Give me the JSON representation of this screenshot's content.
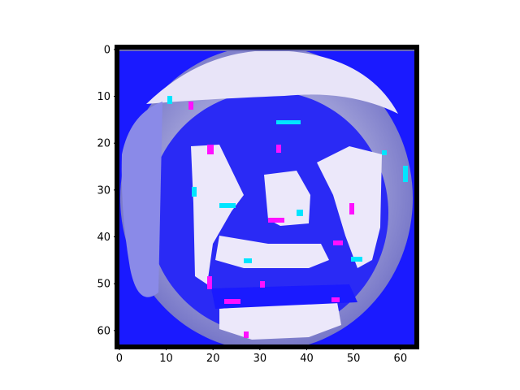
{
  "chart_data": {
    "type": "heatmap",
    "title": "",
    "xlabel": "",
    "ylabel": "",
    "xlim": [
      -0.5,
      63.5
    ],
    "ylim": [
      63.5,
      -0.5
    ],
    "grid": false,
    "x_ticks": [
      0,
      10,
      20,
      30,
      40,
      50,
      60
    ],
    "y_ticks": [
      0,
      10,
      20,
      30,
      40,
      50,
      60
    ],
    "x_tick_labels": [
      "0",
      "10",
      "20",
      "30",
      "40",
      "50",
      "60"
    ],
    "y_tick_labels": [
      "0",
      "10",
      "20",
      "30",
      "40",
      "50",
      "60"
    ],
    "grid_size": [
      64,
      64
    ],
    "colors": {
      "background_blue": "#1a1aff",
      "pale_lavender": "#e8e4f8",
      "soft_violet": "#a8a8d8",
      "mid_periwinkle": "#8a8ae8",
      "cyan": "#00e5ff",
      "magenta": "#ff10ff",
      "frame": "#000000"
    },
    "regions": [
      {
        "name": "outer-blue-field",
        "color": "background_blue"
      },
      {
        "name": "round-halo",
        "color": "soft_violet"
      },
      {
        "name": "upper-arc",
        "color": "pale_lavender"
      },
      {
        "name": "left-band",
        "color": "mid_periwinkle"
      },
      {
        "name": "left-face-patch",
        "color": "pale_lavender"
      },
      {
        "name": "right-face-patch",
        "color": "pale_lavender"
      },
      {
        "name": "center-nose-patch",
        "color": "pale_lavender"
      },
      {
        "name": "mouth-patch",
        "color": "pale_lavender"
      },
      {
        "name": "chin-patch",
        "color": "pale_lavender"
      }
    ]
  }
}
